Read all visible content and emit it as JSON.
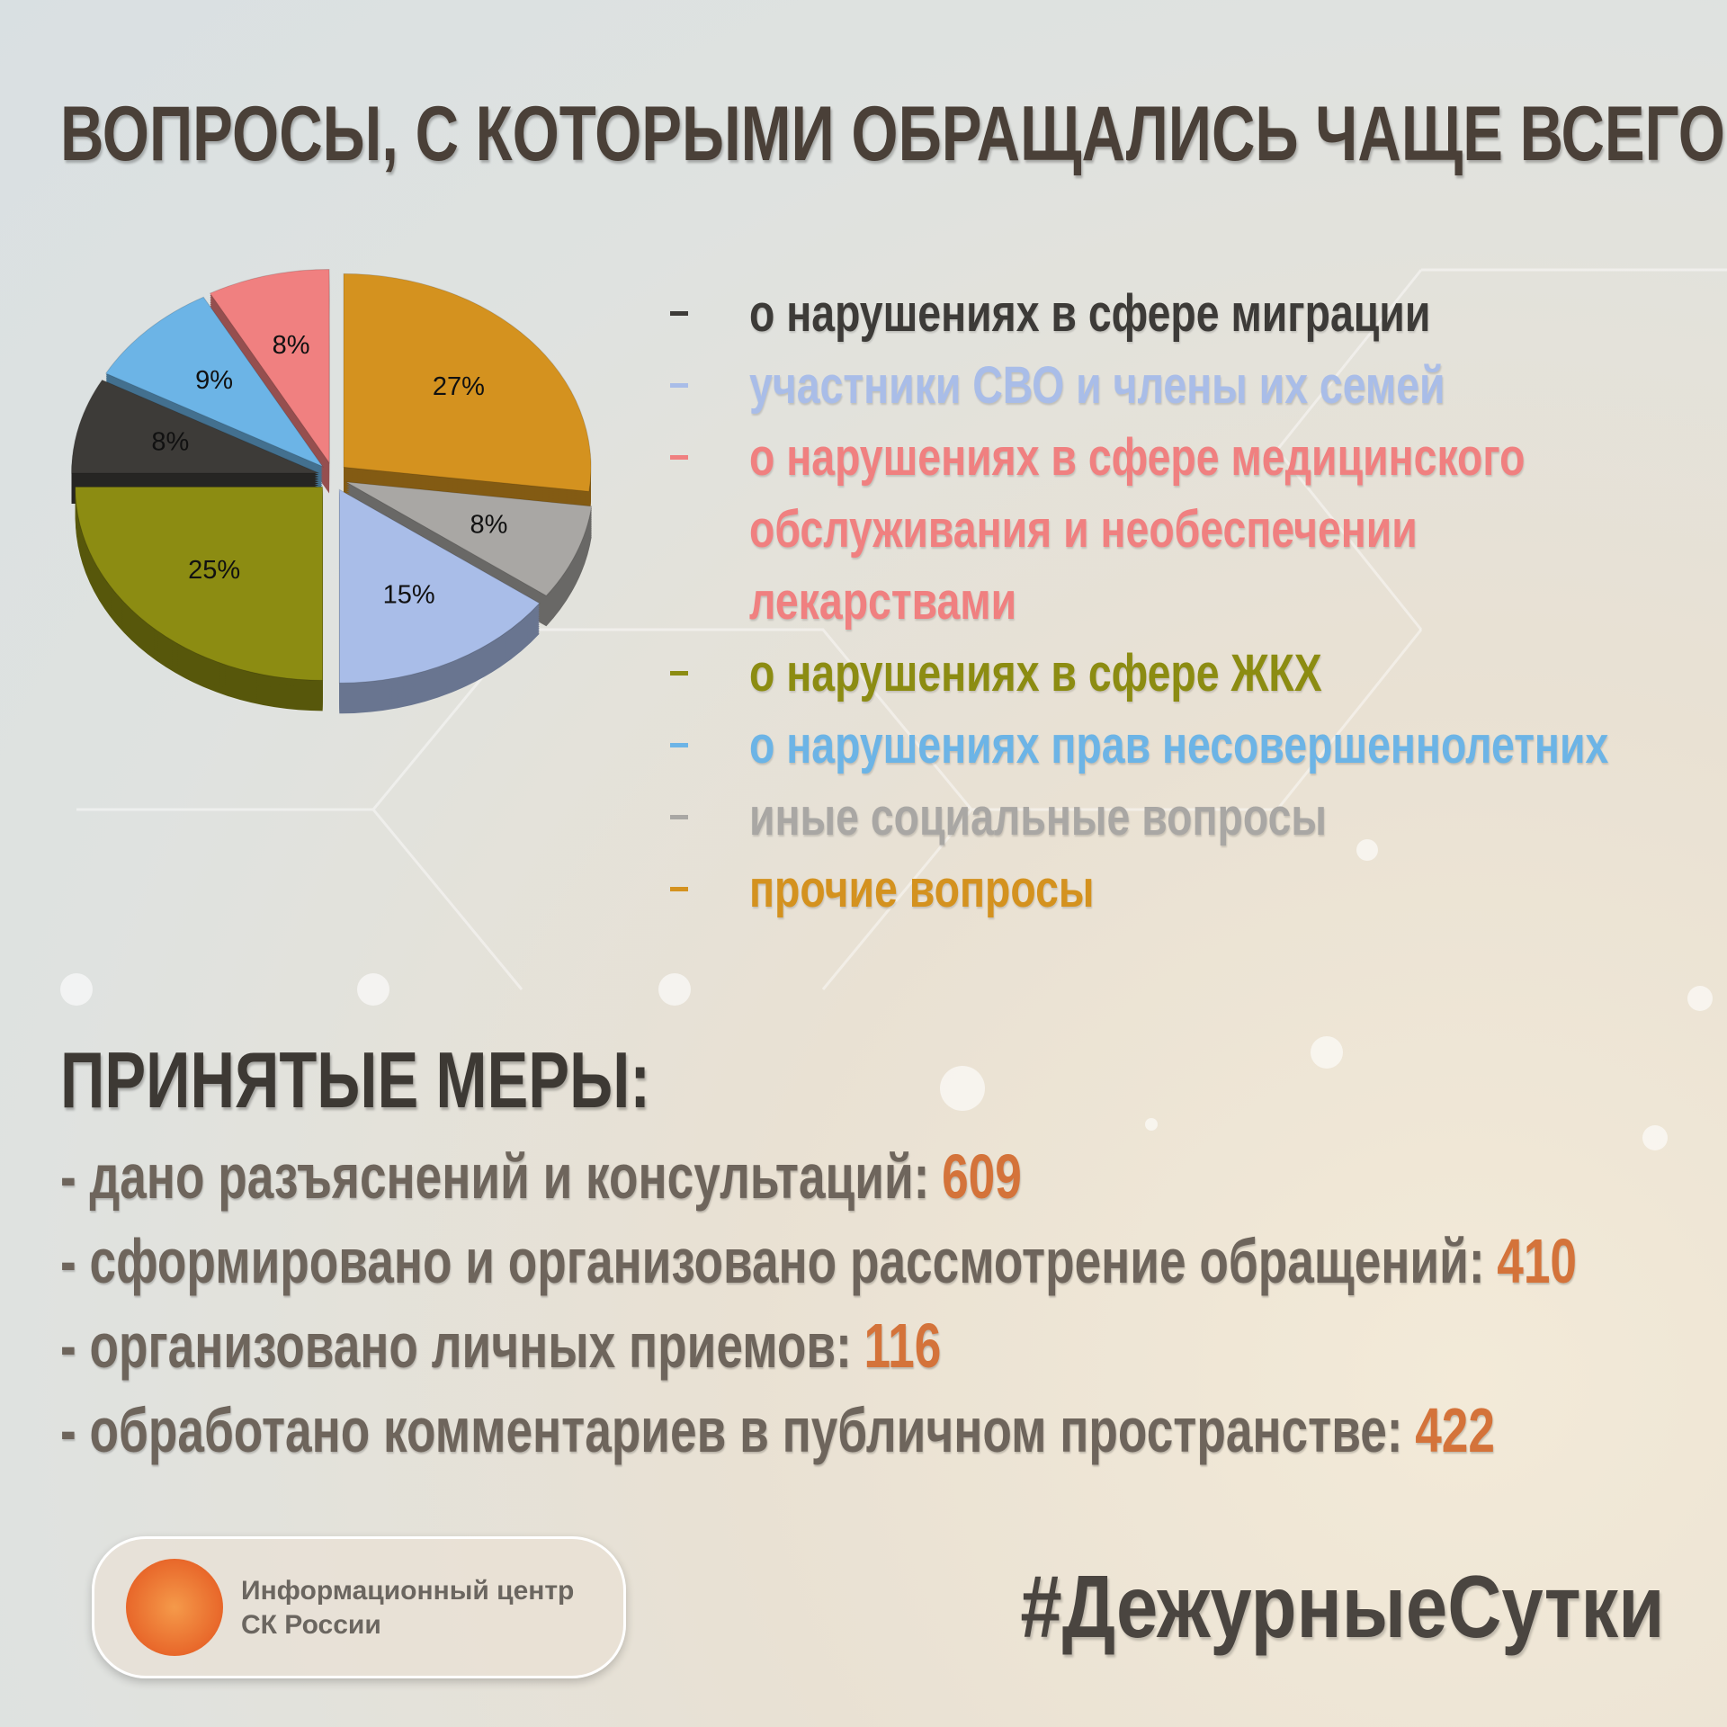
{
  "chart_data": {
    "type": "pie",
    "title": "ВОПРОСЫ, С КОТОРЫМИ ОБРАЩАЛИСЬ ЧАЩЕ ВСЕГО:",
    "categories": [
      "прочие вопросы",
      "иные социальные вопросы",
      "участники СВО и члены их семей",
      "о нарушениях в сфере ЖКХ",
      "о нарушениях в сфере миграции",
      "о нарушениях прав несовершеннолетних",
      "о нарушениях в сфере медицинского обслуживания и необеспечении лекарствами"
    ],
    "values": [
      27,
      8,
      15,
      25,
      8,
      9,
      8
    ],
    "value_labels": [
      "27%",
      "8%",
      "15%",
      "25%",
      "8%",
      "9%",
      "8%"
    ],
    "colors": [
      "#d4921f",
      "#a9a7a4",
      "#a9bde8",
      "#8c8c12",
      "#3d3b38",
      "#6cb4e6",
      "#f08080"
    ]
  },
  "measures": {
    "title": "ПРИНЯТЫЕ МЕРЫ:",
    "items": [
      {
        "label": "- дано разъяснений и консультаций:",
        "value": 609
      },
      {
        "label": "- сформировано и организовано рассмотрение обращений:",
        "value": 410
      },
      {
        "label": "- организовано личных приемов:",
        "value": 116
      },
      {
        "label": "- обработано комментариев в публичном пространстве:",
        "value": 422
      }
    ]
  },
  "logo": {
    "lines": [
      "Информационный центр",
      "СК России"
    ]
  },
  "hashtag": "#ДежурныеСутки"
}
